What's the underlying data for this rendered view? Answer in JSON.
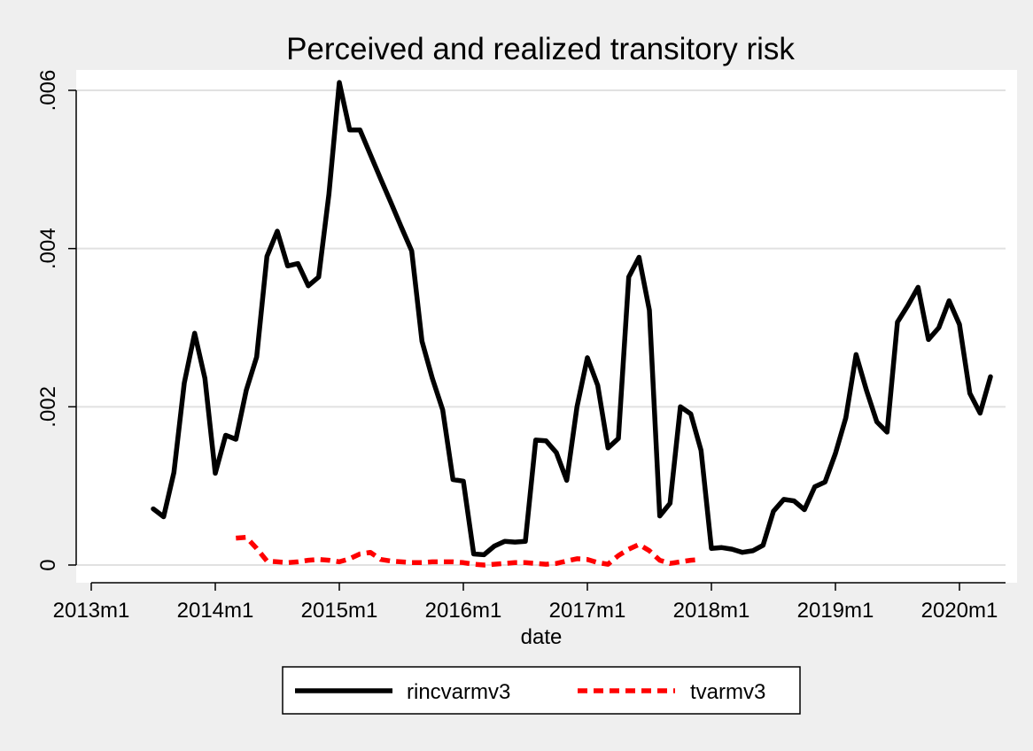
{
  "chart_data": {
    "type": "line",
    "title": "Perceived and realized transitory risk",
    "xlabel": "date",
    "ylabel": "",
    "xlim": [
      "2013m1",
      "2020m4"
    ],
    "ylim": [
      0,
      0.006
    ],
    "x_ticks": [
      "2013m1",
      "2014m1",
      "2015m1",
      "2016m1",
      "2017m1",
      "2018m1",
      "2019m1",
      "2020m1"
    ],
    "y_ticks": [
      {
        "value": 0,
        "label": "0"
      },
      {
        "value": 0.002,
        "label": ".002"
      },
      {
        "value": 0.004,
        "label": ".004"
      },
      {
        "value": 0.006,
        "label": ".006"
      }
    ],
    "grid": "horizontal",
    "legend_position": "bottom",
    "series": [
      {
        "name": "rincvarmv3",
        "color": "#000000",
        "style": "solid",
        "points": [
          [
            "2013m7",
            0.00071
          ],
          [
            "2013m8",
            0.00061
          ],
          [
            "2013m9",
            0.00117
          ],
          [
            "2013m10",
            0.0023
          ],
          [
            "2013m11",
            0.00293
          ],
          [
            "2013m12",
            0.00236
          ],
          [
            "2014m1",
            0.00116
          ],
          [
            "2014m2",
            0.00164
          ],
          [
            "2014m3",
            0.00159
          ],
          [
            "2014m4",
            0.00221
          ],
          [
            "2014m5",
            0.00263
          ],
          [
            "2014m6",
            0.0039
          ],
          [
            "2014m7",
            0.00422
          ],
          [
            "2014m8",
            0.00378
          ],
          [
            "2014m9",
            0.00381
          ],
          [
            "2014m10",
            0.00353
          ],
          [
            "2014m11",
            0.00364
          ],
          [
            "2014m12",
            0.00469
          ],
          [
            "2015m1",
            0.0061
          ],
          [
            "2015m2",
            0.0055
          ],
          [
            "2015m3",
            0.0055
          ],
          [
            "2015m4",
            0.00519
          ],
          [
            "2015m5",
            0.00488
          ],
          [
            "2015m6",
            0.00458
          ],
          [
            "2015m7",
            0.00427
          ],
          [
            "2015m8",
            0.00397
          ],
          [
            "2015m9",
            0.00283
          ],
          [
            "2015m10",
            0.00236
          ],
          [
            "2015m11",
            0.00196
          ],
          [
            "2015m12",
            0.00108
          ],
          [
            "2016m1",
            0.00106
          ],
          [
            "2016m2",
            0.00014
          ],
          [
            "2016m3",
            0.00013
          ],
          [
            "2016m4",
            0.00024
          ],
          [
            "2016m5",
            0.0003
          ],
          [
            "2016m6",
            0.00029
          ],
          [
            "2016m7",
            0.0003
          ],
          [
            "2016m8",
            0.00158
          ],
          [
            "2016m9",
            0.00157
          ],
          [
            "2016m10",
            0.00142
          ],
          [
            "2016m11",
            0.00107
          ],
          [
            "2016m12",
            0.002
          ],
          [
            "2017m1",
            0.00262
          ],
          [
            "2017m2",
            0.00227
          ],
          [
            "2017m3",
            0.00148
          ],
          [
            "2017m4",
            0.0016
          ],
          [
            "2017m5",
            0.00364
          ],
          [
            "2017m6",
            0.00389
          ],
          [
            "2017m7",
            0.00322
          ],
          [
            "2017m8",
            0.00062
          ],
          [
            "2017m9",
            0.00078
          ],
          [
            "2017m10",
            0.002
          ],
          [
            "2017m11",
            0.00191
          ],
          [
            "2017m12",
            0.00145
          ],
          [
            "2018m1",
            0.00021
          ],
          [
            "2018m2",
            0.00022
          ],
          [
            "2018m3",
            0.0002
          ],
          [
            "2018m4",
            0.00016
          ],
          [
            "2018m5",
            0.00018
          ],
          [
            "2018m6",
            0.00025
          ],
          [
            "2018m7",
            0.00068
          ],
          [
            "2018m8",
            0.00083
          ],
          [
            "2018m9",
            0.00081
          ],
          [
            "2018m10",
            0.0007
          ],
          [
            "2018m11",
            0.00099
          ],
          [
            "2018m12",
            0.00105
          ],
          [
            "2019m1",
            0.00141
          ],
          [
            "2019m2",
            0.00186
          ],
          [
            "2019m3",
            0.00266
          ],
          [
            "2019m4",
            0.00221
          ],
          [
            "2019m5",
            0.00181
          ],
          [
            "2019m6",
            0.00168
          ],
          [
            "2019m7",
            0.00307
          ],
          [
            "2019m8",
            0.00328
          ],
          [
            "2019m9",
            0.00351
          ],
          [
            "2019m10",
            0.00285
          ],
          [
            "2019m11",
            0.003
          ],
          [
            "2019m12",
            0.00334
          ],
          [
            "2020m1",
            0.00304
          ],
          [
            "2020m2",
            0.00217
          ],
          [
            "2020m3",
            0.00192
          ],
          [
            "2020m4",
            0.00238
          ]
        ]
      },
      {
        "name": "tvarmv3",
        "color": "#ff0000",
        "style": "dashed",
        "points": [
          [
            "2014m3",
            0.00034
          ],
          [
            "2014m4",
            0.00035
          ],
          [
            "2014m5",
            0.00021
          ],
          [
            "2014m6",
            5e-05
          ],
          [
            "2014m7",
            4e-05
          ],
          [
            "2014m8",
            3e-05
          ],
          [
            "2014m9",
            4e-05
          ],
          [
            "2014m10",
            6e-05
          ],
          [
            "2014m11",
            7e-05
          ],
          [
            "2014m12",
            6e-05
          ],
          [
            "2015m1",
            4e-05
          ],
          [
            "2015m2",
            8e-05
          ],
          [
            "2015m3",
            0.00014
          ],
          [
            "2015m4",
            0.00016
          ],
          [
            "2015m5",
            7e-05
          ],
          [
            "2015m6",
            5e-05
          ],
          [
            "2015m7",
            4e-05
          ],
          [
            "2015m8",
            3e-05
          ],
          [
            "2015m9",
            3e-05
          ],
          [
            "2015m10",
            4e-05
          ],
          [
            "2015m11",
            4e-05
          ],
          [
            "2015m12",
            4e-05
          ],
          [
            "2016m1",
            3e-05
          ],
          [
            "2016m2",
            1e-05
          ],
          [
            "2016m3",
            0.0
          ],
          [
            "2016m4",
            1e-05
          ],
          [
            "2016m5",
            2e-05
          ],
          [
            "2016m6",
            3e-05
          ],
          [
            "2016m7",
            3e-05
          ],
          [
            "2016m8",
            2e-05
          ],
          [
            "2016m9",
            1e-05
          ],
          [
            "2016m10",
            2e-05
          ],
          [
            "2016m11",
            5e-05
          ],
          [
            "2016m12",
            8e-05
          ],
          [
            "2017m1",
            7e-05
          ],
          [
            "2017m2",
            3e-05
          ],
          [
            "2017m3",
            1e-05
          ],
          [
            "2017m4",
            0.00012
          ],
          [
            "2017m5",
            0.0002
          ],
          [
            "2017m6",
            0.00026
          ],
          [
            "2017m7",
            0.00018
          ],
          [
            "2017m8",
            6e-05
          ],
          [
            "2017m9",
            2e-05
          ],
          [
            "2017m10",
            4e-05
          ],
          [
            "2017m11",
            6e-05
          ],
          [
            "2017m12",
            7e-05
          ]
        ]
      }
    ]
  }
}
